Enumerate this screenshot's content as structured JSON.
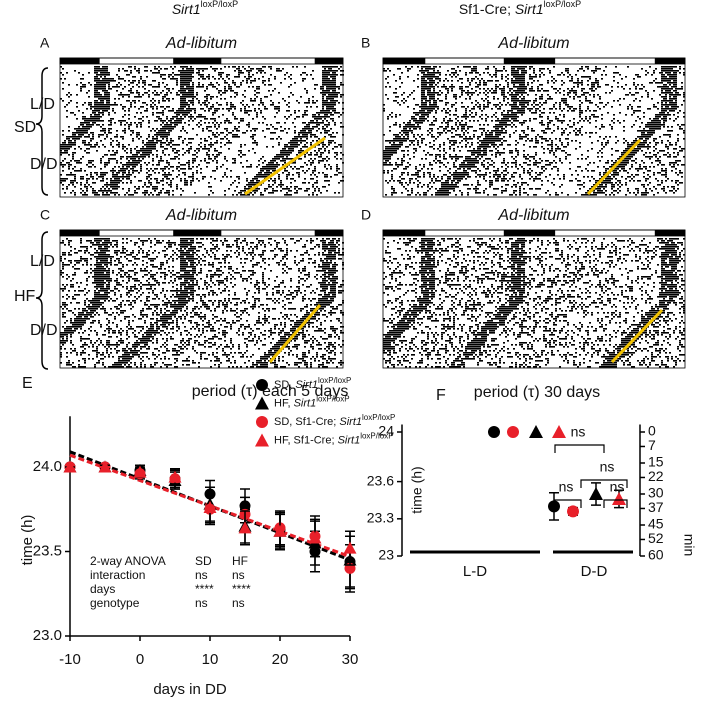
{
  "header": {
    "col1": {
      "gene": "Sirt1",
      "sup": "loxP/loxP"
    },
    "col2": {
      "prefix": "Sf1-Cre; ",
      "gene": "Sirt1",
      "sup": "loxP/loxP"
    }
  },
  "actograms": {
    "panels": [
      {
        "letter": "A",
        "title": "Ad-libitum"
      },
      {
        "letter": "B",
        "title": "Ad-libitum"
      },
      {
        "letter": "C",
        "title": "Ad-libitum"
      },
      {
        "letter": "D",
        "title": "Ad-libitum"
      }
    ],
    "row_labels_top": [
      "L/D",
      "SD",
      "D/D"
    ],
    "row_labels_bottom": [
      "L/D",
      "HF",
      "D/D"
    ]
  },
  "chart_data": [
    {
      "type": "scatter",
      "letter": "E",
      "title": "period (τ) each 5 days",
      "x_label": "days in DD",
      "y_label": "time (h)",
      "x": [
        -10,
        -5,
        0,
        5,
        10,
        15,
        20,
        25,
        30
      ],
      "xlim": [
        -10,
        30
      ],
      "xticks": [
        -10,
        0,
        10,
        20,
        30
      ],
      "ylim": [
        23.0,
        24.3
      ],
      "yticks": [
        {
          "value": 23.0,
          "label": "23.0"
        },
        {
          "value": 23.5,
          "label": "23.5"
        },
        {
          "value": 24.0,
          "label": "24.0"
        }
      ],
      "series": [
        {
          "prefix": "SD, ",
          "gene": "Sirt1",
          "sup": "loxP/loxP",
          "color": "#000000",
          "marker": "circle",
          "values": [
            24.0,
            24.0,
            23.98,
            23.93,
            23.84,
            23.77,
            23.63,
            23.5,
            23.44
          ],
          "errors": [
            0,
            0.01,
            0.03,
            0.06,
            0.08,
            0.1,
            0.1,
            0.12,
            0.15
          ]
        },
        {
          "prefix": "HF, ",
          "gene": "Sirt1",
          "sup": "loxP/loxP",
          "color": "#000000",
          "marker": "triangle",
          "values": [
            24.0,
            24.0,
            23.98,
            23.92,
            23.78,
            23.65,
            23.62,
            23.55,
            23.45
          ],
          "errors": [
            0,
            0.01,
            0.03,
            0.05,
            0.1,
            0.1,
            0.11,
            0.13,
            0.17
          ]
        },
        {
          "prefix": "SD, Sf1-Cre; ",
          "gene": "Sirt1",
          "sup": "loxP/loxP",
          "color": "#e8202a",
          "marker": "circle",
          "values": [
            24.0,
            24.0,
            23.96,
            23.93,
            23.75,
            23.72,
            23.64,
            23.59,
            23.4
          ],
          "errors": [
            0,
            0.01,
            0.03,
            0.05,
            0.09,
            0.1,
            0.1,
            0.12,
            0.14
          ]
        },
        {
          "prefix": "HF, Sf1-Cre; ",
          "gene": "Sirt1",
          "sup": "loxP/loxP",
          "color": "#e8202a",
          "marker": "triangle",
          "values": [
            24.0,
            24.0,
            23.97,
            23.94,
            23.76,
            23.64,
            23.62,
            23.58,
            23.52
          ],
          "errors": [
            0,
            0.01,
            0.03,
            0.04,
            0.09,
            0.1,
            0.1,
            0.11,
            0.1
          ]
        }
      ],
      "trendlines": [
        {
          "color": "#000000",
          "x": [
            -10,
            30
          ],
          "values": [
            24.09,
            23.45
          ]
        },
        {
          "color": "#e8202a",
          "x": [
            -10,
            30
          ],
          "values": [
            24.07,
            23.47
          ]
        }
      ],
      "annotation_table": [
        [
          "2-way ANOVA",
          "SD",
          "HF"
        ],
        [
          "interaction",
          "ns",
          "ns"
        ],
        [
          "days",
          "****",
          "****"
        ],
        [
          "genotype",
          "ns",
          "ns"
        ]
      ]
    },
    {
      "type": "dot",
      "letter": "F",
      "title": "period (τ) 30 days",
      "y_label": "time (h)",
      "y2_label": "min",
      "categories": [
        "L-D",
        "D-D"
      ],
      "ylim": [
        23,
        24.06
      ],
      "yticks": [
        23,
        23.3,
        23.6,
        24
      ],
      "y2lim": [
        60,
        -3.6
      ],
      "y2ticks": [
        0,
        7,
        15,
        22,
        30,
        37,
        45,
        52,
        60
      ],
      "series": [
        {
          "color": "#000000",
          "marker": "circle",
          "values": [
            24.0,
            23.4
          ],
          "errors": [
            0,
            0.11
          ]
        },
        {
          "color": "#e8202a",
          "marker": "circle",
          "values": [
            24.0,
            23.36
          ],
          "errors": [
            0,
            0.03
          ]
        },
        {
          "color": "#000000",
          "marker": "triangle",
          "values": [
            24.0,
            23.5
          ],
          "errors": [
            0,
            0.09
          ]
        },
        {
          "color": "#e8202a",
          "marker": "triangle",
          "values": [
            24.0,
            23.46
          ],
          "errors": [
            0,
            0.07
          ]
        }
      ],
      "annotations": [
        "ns",
        "ns",
        "ns",
        "ns"
      ]
    }
  ]
}
